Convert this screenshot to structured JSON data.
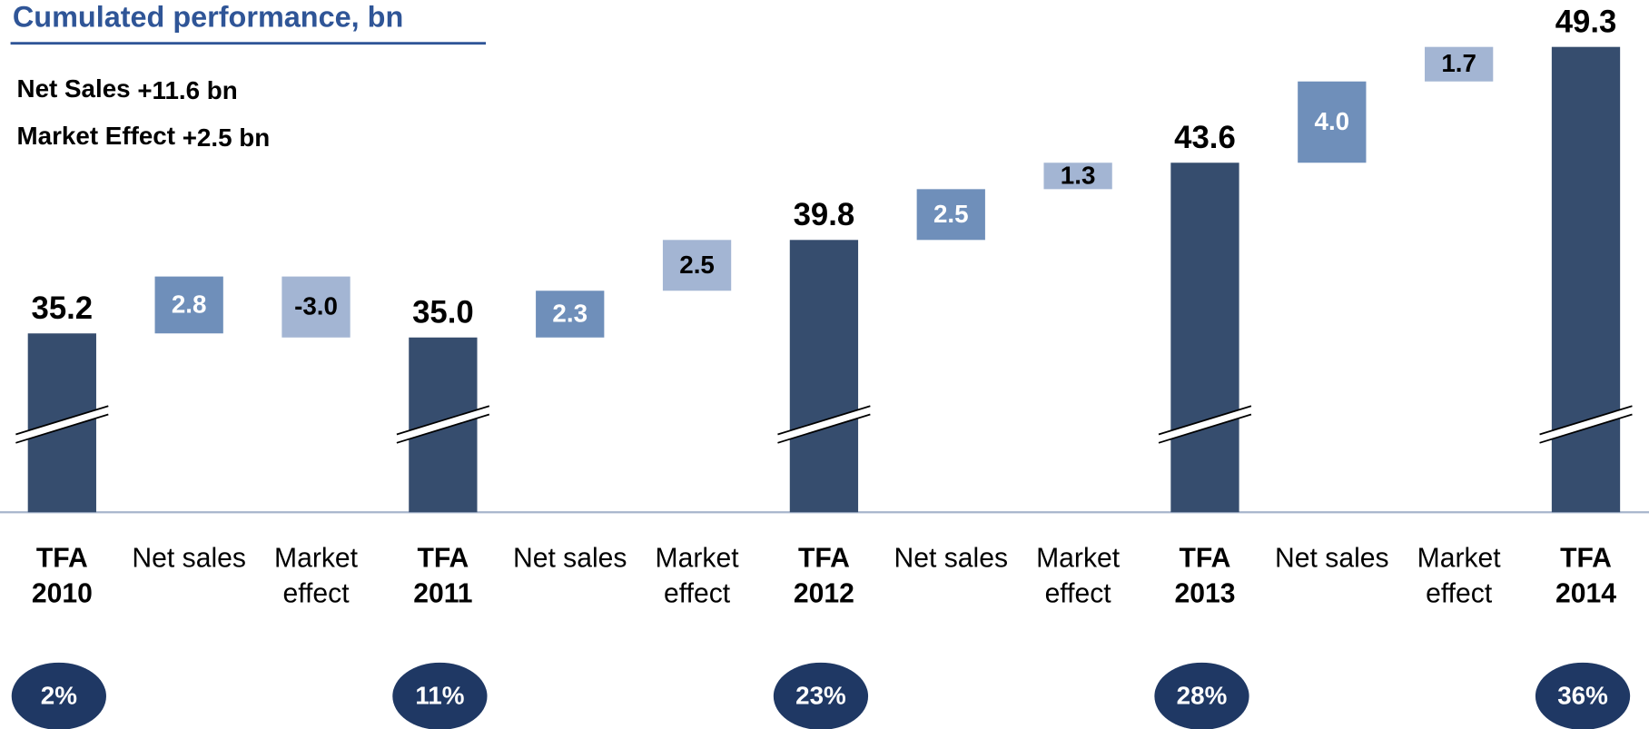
{
  "chart_data": {
    "type": "waterfall",
    "title": "Cumulated performance, bn",
    "summary": [
      {
        "label": "Net Sales",
        "value": "+11.6 bn"
      },
      {
        "label": "Market Effect",
        "value": "+2.5 bn"
      }
    ],
    "categories": [
      [
        "TFA",
        "2010"
      ],
      [
        "Net sales"
      ],
      [
        "Market",
        "effect"
      ],
      [
        "TFA",
        "2011"
      ],
      [
        "Net sales"
      ],
      [
        "Market",
        "effect"
      ],
      [
        "TFA",
        "2012"
      ],
      [
        "Net sales"
      ],
      [
        "Market",
        "effect"
      ],
      [
        "TFA",
        "2013"
      ],
      [
        "Net sales"
      ],
      [
        "Market",
        "effect"
      ],
      [
        "TFA",
        "2014"
      ]
    ],
    "measure": [
      "total",
      "relative",
      "relative",
      "total",
      "relative",
      "relative",
      "total",
      "relative",
      "relative",
      "total",
      "relative",
      "relative",
      "total"
    ],
    "values": [
      35.2,
      2.8,
      -3.0,
      35.0,
      2.3,
      2.5,
      39.8,
      2.5,
      1.3,
      43.6,
      4.0,
      1.7,
      49.3
    ],
    "value_labels": [
      "35.2",
      "2.8",
      "-3.0",
      "35.0",
      "2.3",
      "2.5",
      "39.8",
      "2.5",
      "1.3",
      "43.6",
      "4.0",
      "1.7",
      "49.3"
    ],
    "colors": [
      "#364d6e",
      "#6f8fba",
      "#a3b5d3",
      "#364d6e",
      "#6f8fba",
      "#a3b5d3",
      "#364d6e",
      "#6f8fba",
      "#a3b5d3",
      "#364d6e",
      "#6f8fba",
      "#a3b5d3",
      "#364d6e"
    ],
    "badges": [
      "2%",
      null,
      null,
      "11%",
      null,
      null,
      "23%",
      null,
      null,
      "28%",
      null,
      null,
      "36%"
    ],
    "ylim": [
      26.4,
      51.6
    ],
    "broken_axis": true
  }
}
